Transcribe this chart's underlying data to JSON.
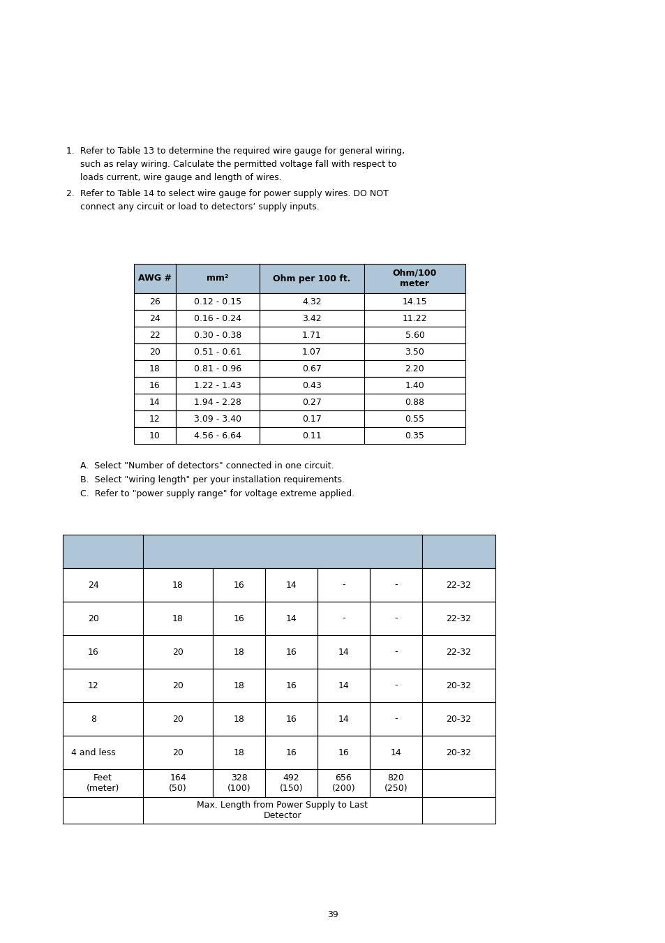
{
  "bg_color": "#ffffff",
  "text_color": "#000000",
  "page_width": 9.54,
  "page_height": 13.51,
  "table1_header": [
    "AWG #",
    "mm²",
    "Ohm per 100 ft.",
    "Ohm/100\nmeter"
  ],
  "table1_header_bg": "#aec6d8",
  "table1_rows": [
    [
      "26",
      "0.12 - 0.15",
      "4.32",
      "14.15"
    ],
    [
      "24",
      "0.16 - 0.24",
      "3.42",
      "11.22"
    ],
    [
      "22",
      "0.30 - 0.38",
      "1.71",
      "5.60"
    ],
    [
      "20",
      "0.51 - 0.61",
      "1.07",
      "3.50"
    ],
    [
      "18",
      "0.81 - 0.96",
      "0.67",
      "2.20"
    ],
    [
      "16",
      "1.22 - 1.43",
      "0.43",
      "1.40"
    ],
    [
      "14",
      "1.94 - 2.28",
      "0.27",
      "0.88"
    ],
    [
      "12",
      "3.09 - 3.40",
      "0.17",
      "0.55"
    ],
    [
      "10",
      "4.56 - 6.64",
      "0.11",
      "0.35"
    ]
  ],
  "list_abc": [
    "A.  Select \"Number of detectors\" connected in one circuit.",
    "B.  Select \"wiring length\" per your installation requirements.",
    "C.  Refer to \"power supply range\" for voltage extreme applied."
  ],
  "table2_header_bg": "#aec6d8",
  "table2_rows": [
    [
      "24",
      "18",
      "16",
      "14",
      "-",
      "-",
      "22-32"
    ],
    [
      "20",
      "18",
      "16",
      "14",
      "-",
      "-",
      "22-32"
    ],
    [
      "16",
      "20",
      "18",
      "16",
      "14",
      "-",
      "22-32"
    ],
    [
      "12",
      "20",
      "18",
      "16",
      "14",
      "-",
      "20-32"
    ],
    [
      "8",
      "20",
      "18",
      "16",
      "14",
      "-",
      "20-32"
    ],
    [
      "4 and less",
      "20",
      "18",
      "16",
      "16",
      "14",
      "20-32"
    ]
  ],
  "table2_footer1": [
    "Feet\n(meter)",
    "164\n(50)",
    "328\n(100)",
    "492\n(150)",
    "656\n(200)",
    "820\n(250)",
    ""
  ],
  "table2_footer2_text": "Max. Length from Power Supply to Last\nDetector",
  "page_number": "39",
  "intro1_line1": "1.  Refer to Table 13 to determine the required wire gauge for general wiring,",
  "intro1_line2": "     such as relay wiring. Calculate the permitted voltage fall with respect to",
  "intro1_line3": "     loads current, wire gauge and length of wires.",
  "intro2_line1": "2.  Refer to Table 14 to select wire gauge for power supply wires. DO NOT",
  "intro2_line2": "     connect any circuit or load to detectors’ supply inputs.",
  "font_size": 9.0
}
